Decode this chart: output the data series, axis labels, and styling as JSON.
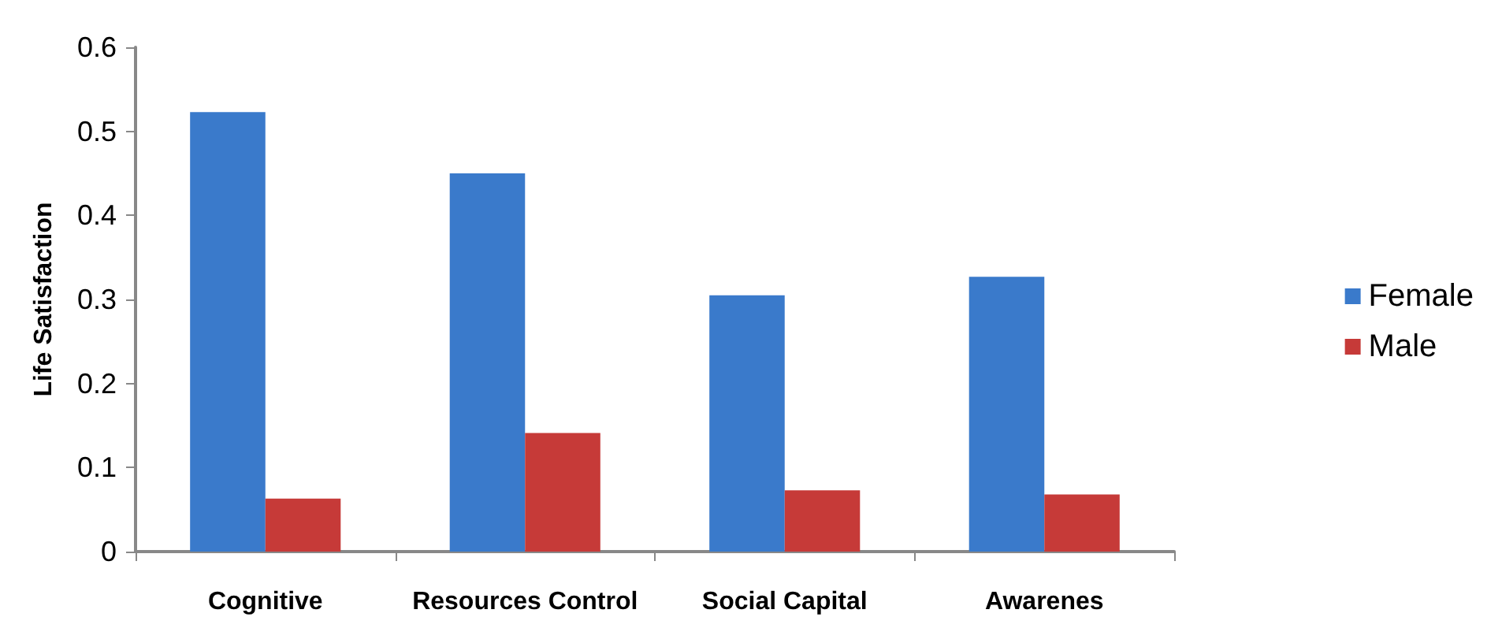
{
  "chart_data": {
    "type": "bar",
    "ylabel": "Life Satisfaction",
    "categories": [
      "Cognitive",
      "Resources Control",
      "Social Capital",
      "Awarenes"
    ],
    "series": [
      {
        "name": "Female",
        "color": "#3a7acb",
        "values": [
          0.523,
          0.45,
          0.305,
          0.327
        ]
      },
      {
        "name": "Male",
        "color": "#c63a38",
        "values": [
          0.063,
          0.141,
          0.073,
          0.068
        ]
      }
    ],
    "ylim": [
      0,
      0.6
    ],
    "yticks": [
      0,
      0.1,
      0.2,
      0.3,
      0.4,
      0.5,
      0.6
    ],
    "grid": false,
    "legend": "right"
  }
}
